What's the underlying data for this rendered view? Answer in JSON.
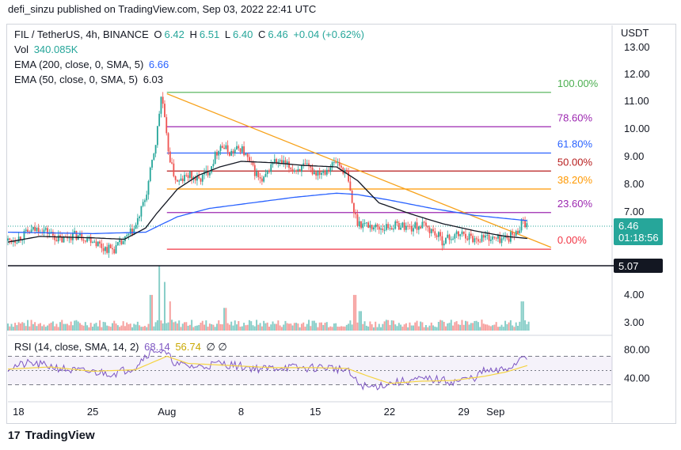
{
  "header": {
    "published_line": "defi_sinzu published on TradingView.com, Sep 03, 2022 22:41 UTC"
  },
  "footer": {
    "brand": "TradingView",
    "logo_glyph": "17"
  },
  "legend": {
    "symbol": "FIL / TetherUS, 4h, BINANCE",
    "open_label": "O",
    "open": "6.42",
    "high_label": "H",
    "high": "6.51",
    "low_label": "L",
    "low": "6.40",
    "close_label": "C",
    "close": "6.46",
    "change": "+0.04 (+0.62%)",
    "vol_label": "Vol",
    "vol_value": "340.085K",
    "ema200_label": "EMA (200, close, 0, SMA, 5)",
    "ema200_value": "6.66",
    "ema50_label": "EMA (50, close, 0, SMA, 5)",
    "ema50_value": "6.03",
    "rsi_label": "RSI (14, close, SMA, 14, 2)",
    "rsi_value": "68.14",
    "rsi_sma_value": "56.74",
    "null_marks": "∅ ∅"
  },
  "colors": {
    "up": "#26a69a",
    "down": "#ef5350",
    "ema200": "#2962ff",
    "ema50": "#131722",
    "trend": "#f7a21b",
    "rsi": "#7e57c2",
    "rsi_ma": "#f5d442",
    "fib_100": "#4caf50",
    "fib_786": "#9c27b0",
    "fib_618": "#2962ff",
    "fib_50": "#b71c1c",
    "fib_382": "#ff9800",
    "fib_236": "#9c27b0",
    "fib_0": "#f23645"
  },
  "chart_data": {
    "type": "candlestick",
    "symbol": "FIL/USDT",
    "interval": "4h",
    "ylim": [
      2.6,
      13.4
    ],
    "y_axis_title": "USDT",
    "y_ticks": [
      "13.00",
      "12.00",
      "11.00",
      "10.00",
      "9.00",
      "8.00",
      "7.00",
      "4.00",
      "3.00"
    ],
    "x_ticks": [
      {
        "label": "18",
        "day": 18
      },
      {
        "label": "25",
        "day": 25
      },
      {
        "label": "Aug",
        "day": 32
      },
      {
        "label": "8",
        "day": 39
      },
      {
        "label": "15",
        "day": 46
      },
      {
        "label": "22",
        "day": 53
      },
      {
        "label": "29",
        "day": 60
      },
      {
        "label": "Sep",
        "day": 63
      }
    ],
    "x_range_days": [
      17,
      74
    ],
    "price_series_by_day": [
      [
        17.0,
        5.95
      ],
      [
        18.0,
        6.05
      ],
      [
        19.0,
        6.25
      ],
      [
        20.0,
        6.4
      ],
      [
        21.0,
        6.2
      ],
      [
        22.0,
        5.95
      ],
      [
        23.0,
        6.15
      ],
      [
        24.0,
        6.1
      ],
      [
        25.0,
        6.0
      ],
      [
        26.0,
        5.7
      ],
      [
        27.0,
        5.65
      ],
      [
        28.0,
        5.95
      ],
      [
        29.0,
        6.4
      ],
      [
        30.0,
        7.5
      ],
      [
        31.0,
        9.6
      ],
      [
        31.5,
        11.3
      ],
      [
        32.0,
        9.5
      ],
      [
        32.5,
        8.5
      ],
      [
        33.0,
        8.0
      ],
      [
        34.0,
        8.3
      ],
      [
        35.0,
        8.1
      ],
      [
        36.0,
        8.5
      ],
      [
        37.0,
        9.4
      ],
      [
        38.0,
        9.1
      ],
      [
        39.0,
        9.3
      ],
      [
        40.0,
        8.6
      ],
      [
        41.0,
        8.0
      ],
      [
        42.0,
        8.8
      ],
      [
        43.0,
        8.7
      ],
      [
        44.0,
        8.5
      ],
      [
        45.0,
        8.6
      ],
      [
        46.0,
        8.4
      ],
      [
        47.0,
        8.5
      ],
      [
        48.0,
        8.8
      ],
      [
        49.0,
        8.3
      ],
      [
        49.6,
        7.0
      ],
      [
        50.0,
        6.6
      ],
      [
        51.0,
        6.5
      ],
      [
        52.0,
        6.4
      ],
      [
        53.0,
        6.45
      ],
      [
        54.0,
        6.5
      ],
      [
        55.0,
        6.4
      ],
      [
        56.0,
        6.5
      ],
      [
        57.0,
        6.3
      ],
      [
        58.0,
        5.95
      ],
      [
        59.0,
        6.1
      ],
      [
        60.0,
        6.2
      ],
      [
        61.0,
        6.0
      ],
      [
        62.0,
        6.1
      ],
      [
        63.0,
        6.0
      ],
      [
        64.0,
        6.05
      ],
      [
        65.0,
        6.2
      ],
      [
        65.5,
        6.7
      ],
      [
        66.0,
        6.46
      ]
    ],
    "ema50_by_day": [
      [
        17,
        5.9
      ],
      [
        20,
        6.1
      ],
      [
        25,
        6.05
      ],
      [
        28,
        6.0
      ],
      [
        30,
        6.4
      ],
      [
        31,
        6.9
      ],
      [
        33,
        7.8
      ],
      [
        35,
        8.3
      ],
      [
        37,
        8.6
      ],
      [
        39,
        8.8
      ],
      [
        42,
        8.75
      ],
      [
        45,
        8.65
      ],
      [
        48,
        8.6
      ],
      [
        50,
        8.1
      ],
      [
        52,
        7.3
      ],
      [
        55,
        6.9
      ],
      [
        58,
        6.55
      ],
      [
        61,
        6.3
      ],
      [
        64,
        6.1
      ],
      [
        66,
        6.03
      ]
    ],
    "ema200_by_day": [
      [
        17,
        6.25
      ],
      [
        25,
        6.2
      ],
      [
        30,
        6.25
      ],
      [
        33,
        6.8
      ],
      [
        36,
        7.1
      ],
      [
        40,
        7.3
      ],
      [
        44,
        7.5
      ],
      [
        48,
        7.65
      ],
      [
        50,
        7.6
      ],
      [
        53,
        7.4
      ],
      [
        57,
        7.1
      ],
      [
        61,
        6.85
      ],
      [
        66,
        6.66
      ]
    ],
    "current_price": "6.46",
    "countdown": "01:18:56",
    "support_level": "5.07",
    "support_value": 5.07,
    "trendline": {
      "from": [
        32,
        11.25
      ],
      "to": [
        66,
        6.05
      ]
    },
    "fibonacci": {
      "from_day": 32,
      "to_day": 66,
      "levels": [
        {
          "label": "100.00%",
          "price": 11.3,
          "color_key": "fib_100"
        },
        {
          "label": "78.60%",
          "price": 10.05,
          "color_key": "fib_786"
        },
        {
          "label": "61.80%",
          "price": 9.1,
          "color_key": "fib_618"
        },
        {
          "label": "50.00%",
          "price": 8.45,
          "color_key": "fib_50"
        },
        {
          "label": "38.20%",
          "price": 7.8,
          "color_key": "fib_382"
        },
        {
          "label": "23.60%",
          "price": 6.95,
          "color_key": "fib_236"
        },
        {
          "label": "0.00%",
          "price": 5.65,
          "color_key": "fib_0"
        }
      ]
    },
    "volume": {
      "spikes": [
        {
          "day": 30.5,
          "value": 0.55
        },
        {
          "day": 31.3,
          "value": 1.0
        },
        {
          "day": 31.8,
          "value": 0.75
        },
        {
          "day": 32.3,
          "value": 0.45
        },
        {
          "day": 37.5,
          "value": 0.35
        },
        {
          "day": 49.7,
          "value": 0.55
        },
        {
          "day": 50.2,
          "value": 0.3
        },
        {
          "day": 65.5,
          "value": 0.45
        }
      ]
    },
    "rsi": {
      "ylim": [
        15,
        95
      ],
      "y_ticks": [
        "80.00",
        "40.00"
      ],
      "band": [
        30,
        70
      ],
      "mid": 50,
      "values_by_day": [
        [
          17,
          54
        ],
        [
          19,
          60
        ],
        [
          21,
          56
        ],
        [
          23,
          50
        ],
        [
          25,
          48
        ],
        [
          27,
          46
        ],
        [
          29,
          55
        ],
        [
          30,
          72
        ],
        [
          31,
          80
        ],
        [
          32,
          72
        ],
        [
          33,
          58
        ],
        [
          35,
          55
        ],
        [
          37,
          60
        ],
        [
          39,
          56
        ],
        [
          41,
          52
        ],
        [
          43,
          55
        ],
        [
          45,
          53
        ],
        [
          47,
          55
        ],
        [
          49,
          50
        ],
        [
          50,
          32
        ],
        [
          51,
          26
        ],
        [
          53,
          32
        ],
        [
          55,
          36
        ],
        [
          57,
          38
        ],
        [
          59,
          34
        ],
        [
          61,
          40
        ],
        [
          62,
          50
        ],
        [
          63,
          48
        ],
        [
          64,
          52
        ],
        [
          65,
          60
        ],
        [
          65.5,
          74
        ],
        [
          66,
          68
        ]
      ],
      "ma_by_day": [
        [
          17,
          52
        ],
        [
          21,
          55
        ],
        [
          25,
          49
        ],
        [
          29,
          51
        ],
        [
          32,
          70
        ],
        [
          34,
          60
        ],
        [
          38,
          57
        ],
        [
          42,
          54
        ],
        [
          46,
          54
        ],
        [
          49,
          53
        ],
        [
          51,
          42
        ],
        [
          53,
          32
        ],
        [
          56,
          35
        ],
        [
          59,
          36
        ],
        [
          62,
          42
        ],
        [
          64,
          48
        ],
        [
          66,
          57
        ]
      ]
    }
  }
}
